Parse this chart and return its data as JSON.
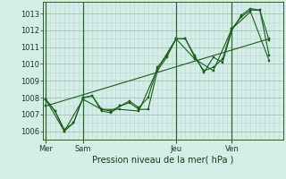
{
  "background_color": "#d4ede6",
  "grid_color_major": "#a8c8be",
  "grid_color_minor": "#c0ddd7",
  "line_color": "#1a5e1a",
  "marker_color": "#1a5e1a",
  "title": "Pression niveau de la mer( hPa )",
  "ylim": [
    1005.5,
    1013.7
  ],
  "yticks": [
    1006,
    1007,
    1008,
    1009,
    1010,
    1011,
    1012,
    1013
  ],
  "day_labels": [
    "Mer",
    "Sam",
    "Jeu",
    "Ven"
  ],
  "day_positions": [
    0,
    4,
    14,
    20
  ],
  "xlim": [
    -0.3,
    25.5
  ],
  "series": [
    {
      "x": [
        0,
        1,
        2,
        3,
        4,
        5,
        6,
        7,
        8,
        9,
        10,
        11,
        12,
        13,
        14,
        15,
        16,
        17,
        18,
        19,
        20,
        21,
        22,
        23,
        24
      ],
      "y": [
        1007.9,
        1007.2,
        1006.0,
        1006.5,
        1008.0,
        1008.1,
        1007.3,
        1007.2,
        1007.5,
        1007.7,
        1007.3,
        1007.3,
        1009.6,
        1010.4,
        1011.5,
        1011.5,
        1010.4,
        1009.6,
        1009.8,
        1010.3,
        1012.1,
        1012.8,
        1013.2,
        1013.2,
        1011.4
      ]
    },
    {
      "x": [
        0,
        1,
        2,
        3,
        4,
        5,
        6,
        7,
        8,
        9,
        10,
        11,
        12,
        13,
        14,
        15,
        16,
        17,
        18,
        19,
        20,
        21,
        22,
        23,
        24
      ],
      "y": [
        1007.9,
        1007.2,
        1006.1,
        1006.5,
        1008.0,
        1008.1,
        1007.2,
        1007.1,
        1007.5,
        1007.8,
        1007.4,
        1008.0,
        1009.8,
        1010.5,
        1011.5,
        1011.5,
        1010.5,
        1009.5,
        1010.4,
        1010.1,
        1012.0,
        1012.9,
        1013.3,
        1013.2,
        1010.5
      ]
    },
    {
      "x": [
        0,
        2,
        4,
        6,
        8,
        10,
        12,
        14,
        16,
        18,
        20,
        22,
        24
      ],
      "y": [
        1007.9,
        1006.0,
        1007.9,
        1007.3,
        1007.3,
        1007.2,
        1009.7,
        1011.5,
        1010.3,
        1009.6,
        1012.1,
        1013.1,
        1010.2
      ]
    },
    {
      "x": [
        0,
        24
      ],
      "y": [
        1007.5,
        1011.5
      ]
    }
  ]
}
